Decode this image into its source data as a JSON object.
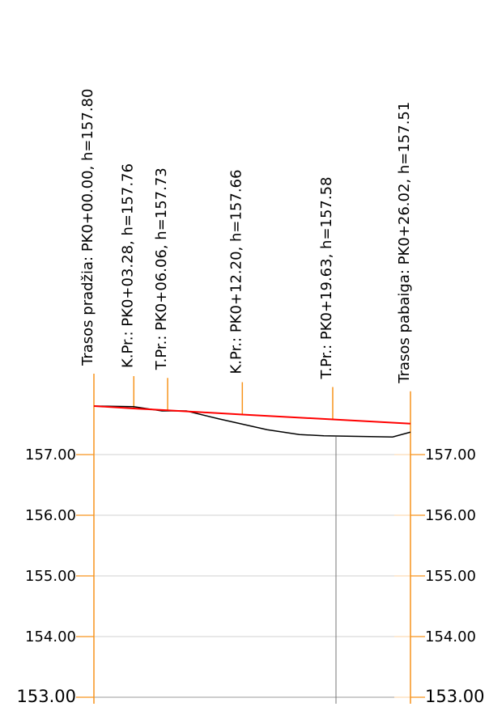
{
  "chart_data": {
    "type": "line",
    "stations": [
      "Trasos pradžia: PK0+00.00, h=157.80",
      "K.Pr.: PK0+03.28, h=157.76",
      "T.Pr.: PK0+06.06, h=157.73",
      "K.Pr.: PK0+12.20, h=157.66",
      "T.Pr.: PK0+19.63, h=157.58",
      "Trasos pabaiga: PK0+26.02, h=157.51"
    ],
    "series": [
      {
        "color": "#ff0000",
        "x": [
          0,
          3.28,
          6.06,
          12.2,
          19.63,
          26.02
        ],
        "values": [
          157.8,
          157.76,
          157.73,
          157.66,
          157.58,
          157.51
        ]
      },
      {
        "color": "#000000",
        "x": [
          0,
          3.26,
          5.59,
          7.59,
          10.25,
          14.24,
          16.9,
          18.9,
          24.55,
          26.02
        ],
        "values": [
          157.8,
          157.79,
          157.72,
          157.72,
          157.59,
          157.41,
          157.33,
          157.31,
          157.29,
          157.37
        ]
      }
    ],
    "xlim": [
      0,
      26.02
    ],
    "ylim": [
      153,
      158
    ],
    "yticks": [
      {
        "value": 153,
        "label": "153.00"
      },
      {
        "value": 154,
        "label": "154.00"
      },
      {
        "value": 155,
        "label": "155.00"
      },
      {
        "value": 156,
        "label": "156.00"
      },
      {
        "value": 157,
        "label": "157.00"
      }
    ],
    "grid": true
  }
}
